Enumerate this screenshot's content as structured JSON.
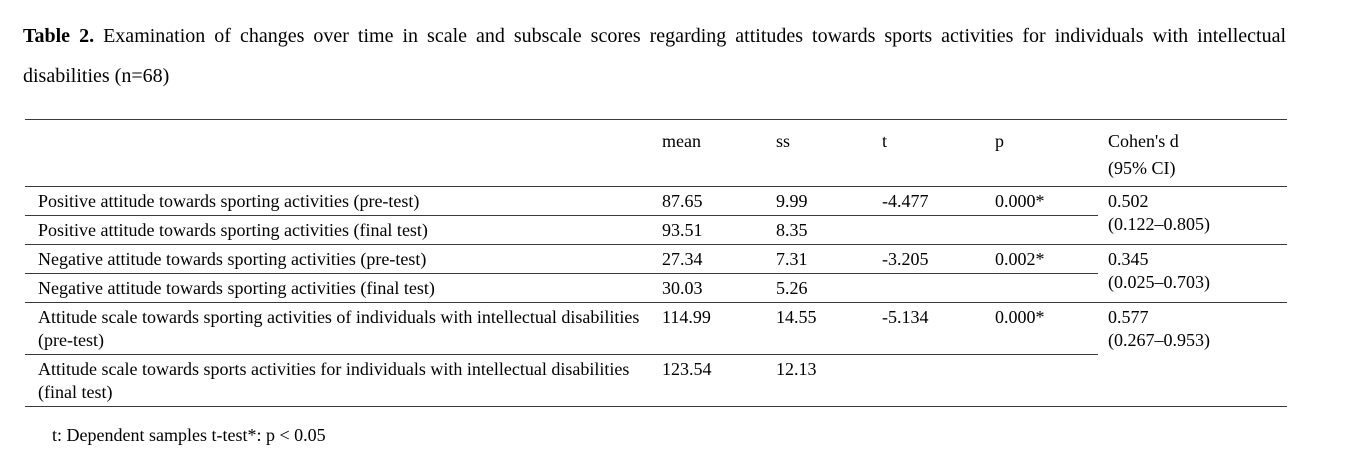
{
  "title": {
    "label": "Table 2.",
    "text": "Examination of changes over time in scale and subscale scores regarding attitudes towards sports activities for individuals with intellectual disabilities (n=68)"
  },
  "table": {
    "header": {
      "label": "",
      "mean": "mean",
      "ss": "ss",
      "t": "t",
      "p": "p",
      "cohens_d_line1": "Cohen's d",
      "cohens_d_line2": "(95% CI)"
    },
    "rows": [
      {
        "label": "Positive attitude towards sporting activities (pre-test)",
        "mean": "87.65",
        "ss": "9.99",
        "t": "-4.477",
        "p": "0.000*"
      },
      {
        "label": "Positive attitude towards sporting activities (final test)",
        "mean": "93.51",
        "ss": "8.35",
        "t": "",
        "p": ""
      },
      {
        "label": "Negative attitude towards sporting activities (pre-test)",
        "mean": "27.34",
        "ss": "7.31",
        "t": "-3.205",
        "p": "0.002*"
      },
      {
        "label": "Negative attitude towards sporting activities (final test)",
        "mean": "30.03",
        "ss": "5.26",
        "t": "",
        "p": ""
      },
      {
        "label": "Attitude scale towards sporting activities of individuals with intellectual disabilities (pre-test)",
        "mean": "114.99",
        "ss": "14.55",
        "t": "-5.134",
        "p": "0.000*"
      },
      {
        "label": "Attitude scale towards sports activities for individuals with intellectual disabilities (final test)",
        "mean": "123.54",
        "ss": "12.13",
        "t": "",
        "p": ""
      }
    ],
    "cohens_d": [
      {
        "value": "0.502",
        "ci": "(0.122–0.805)"
      },
      {
        "value": "0.345",
        "ci": "(0.025–0.703)"
      },
      {
        "value": "0.577",
        "ci": "(0.267–0.953)"
      }
    ]
  },
  "footnote": "t: Dependent samples t-test*: p < 0.05"
}
